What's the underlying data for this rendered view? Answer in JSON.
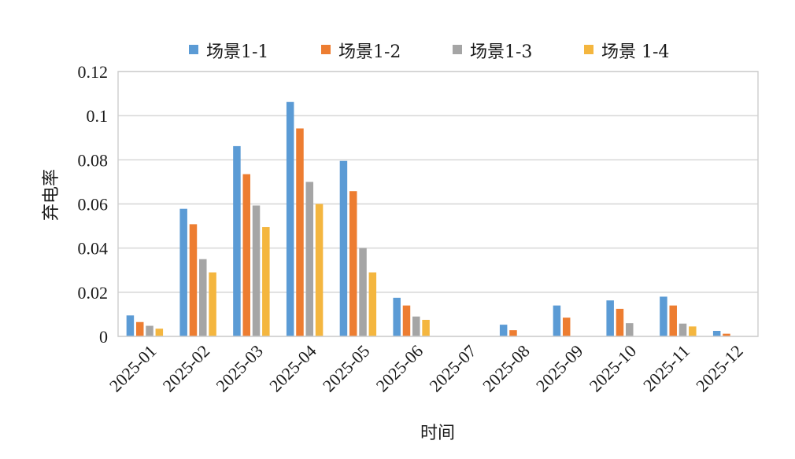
{
  "chart_data": {
    "type": "bar",
    "title": "",
    "xlabel": "时间",
    "ylabel": "弃电率",
    "ylim": [
      0,
      0.12
    ],
    "yticks": [
      "0",
      "0.02",
      "0.04",
      "0.06",
      "0.08",
      "0.1",
      "0.12"
    ],
    "ytick_values": [
      0,
      0.02,
      0.04,
      0.06,
      0.08,
      0.1,
      0.12
    ],
    "grid": true,
    "legend_position": "top",
    "categories": [
      "2025-01",
      "2025-02",
      "2025-03",
      "2025-04",
      "2025-05",
      "2025-06",
      "2025-07",
      "2025-08",
      "2025-09",
      "2025-10",
      "2025-11",
      "2025-12"
    ],
    "series": [
      {
        "name": "场景1-1",
        "color": "#5B9BD5",
        "values": [
          0.0095,
          0.0578,
          0.0862,
          0.1062,
          0.0795,
          0.0175,
          0,
          0.0053,
          0.014,
          0.0163,
          0.018,
          0.0025
        ]
      },
      {
        "name": "场景1-2",
        "color": "#ED7D31",
        "values": [
          0.0065,
          0.0508,
          0.0735,
          0.0942,
          0.0658,
          0.014,
          0,
          0.0028,
          0.0085,
          0.0125,
          0.014,
          0.0012
        ]
      },
      {
        "name": "场景1-3",
        "color": "#A5A5A5",
        "values": [
          0.0048,
          0.035,
          0.0593,
          0.07,
          0.04,
          0.009,
          0,
          0,
          0,
          0.006,
          0.0058,
          0
        ]
      },
      {
        "name": "场景 1-4",
        "color": "#F4B63F",
        "values": [
          0.0035,
          0.029,
          0.0495,
          0.06,
          0.029,
          0.0075,
          0,
          0,
          0,
          0,
          0.0045,
          0
        ]
      }
    ]
  }
}
